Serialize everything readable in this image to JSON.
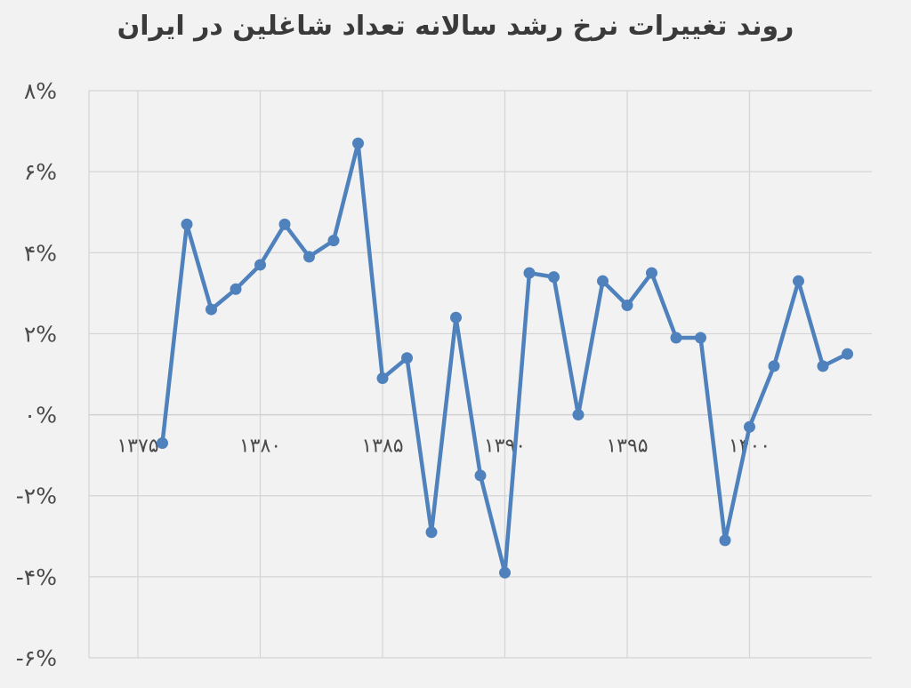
{
  "chart_data": {
    "type": "line",
    "title": "روند تغییرات نرخ رشد سالانه تعداد شاغلین در ایران",
    "xlabel": "",
    "ylabel": "",
    "xlim": [
      1373,
      1405
    ],
    "ylim": [
      -6,
      8
    ],
    "x_ticks": [
      1375,
      1380,
      1385,
      1390,
      1395,
      1400
    ],
    "x_tick_labels": [
      "۱۳۷۵",
      "۱۳۸۰",
      "۱۳۸۵",
      "۱۳۹۰",
      "۱۳۹۵",
      "۱۴۰۰"
    ],
    "y_ticks": [
      -6,
      -4,
      -2,
      0,
      2,
      4,
      6,
      8
    ],
    "y_tick_labels": [
      "-۶%",
      "-۴%",
      "-۲%",
      "۰%",
      "۲%",
      "۴%",
      "۶%",
      "۸%"
    ],
    "grid": true,
    "legend": "none",
    "color": "#4f81bd",
    "series": [
      {
        "x": [
          1376,
          1377,
          1378,
          1379,
          1380,
          1381,
          1382,
          1383,
          1384,
          1385,
          1386,
          1387,
          1388,
          1389,
          1390,
          1391,
          1392,
          1393,
          1394,
          1395,
          1396,
          1397,
          1398,
          1399,
          1400,
          1401,
          1402,
          1403,
          1404
        ],
        "values": [
          -0.7,
          4.7,
          2.6,
          3.1,
          3.7,
          4.7,
          3.9,
          4.3,
          6.7,
          0.9,
          1.4,
          -2.9,
          2.4,
          -1.5,
          -3.9,
          3.5,
          3.4,
          0.0,
          3.3,
          2.7,
          3.5,
          1.9,
          1.9,
          -3.1,
          -0.3,
          1.2,
          3.3,
          1.2,
          1.5
        ]
      }
    ]
  }
}
